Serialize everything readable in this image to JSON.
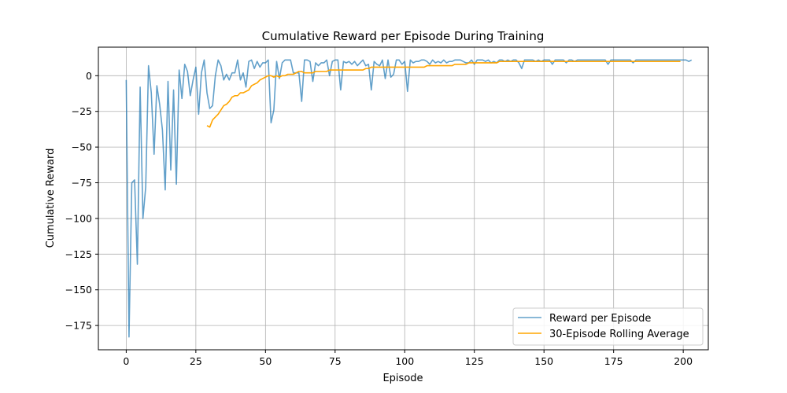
{
  "chart_data": {
    "type": "line",
    "title": "Cumulative Reward per Episode During Training",
    "xlabel": "Episode",
    "ylabel": "Cumulative Reward",
    "xlim": [
      -10,
      209
    ],
    "ylim": [
      -192,
      20
    ],
    "xticks": [
      0,
      25,
      50,
      75,
      100,
      125,
      150,
      175,
      200
    ],
    "yticks": [
      0,
      -25,
      -50,
      -75,
      -100,
      -125,
      -150,
      -175
    ],
    "grid": true,
    "legend_position": "lower-right",
    "series": [
      {
        "name": "Reward per Episode",
        "color": "#1f77b4",
        "opacity": 0.7,
        "x_start": 0,
        "values": [
          -3,
          -183,
          -75,
          -73,
          -132,
          -8,
          -100,
          -78,
          7,
          -12,
          -55,
          -7,
          -20,
          -38,
          -80,
          -4,
          -66,
          -10,
          -76,
          4,
          -16,
          8,
          3,
          -14,
          -3,
          6,
          -27,
          2,
          11,
          -12,
          -23,
          -21,
          0,
          11,
          7,
          -3,
          1,
          -3,
          2,
          2,
          11,
          -3,
          2,
          -8,
          10,
          11,
          5,
          10,
          6,
          9,
          9,
          11,
          -33,
          -24,
          10,
          -2,
          9,
          11,
          11,
          11,
          2,
          2,
          2,
          -18,
          11,
          11,
          10,
          -4,
          9,
          7,
          9,
          9,
          11,
          0,
          10,
          11,
          11,
          -10,
          10,
          9,
          10,
          8,
          10,
          7,
          9,
          11,
          7,
          8,
          -10,
          10,
          8,
          7,
          11,
          -2,
          11,
          -1,
          1,
          11,
          11,
          8,
          10,
          -11,
          11,
          9,
          10,
          10,
          11,
          11,
          10,
          8,
          11,
          9,
          10,
          9,
          11,
          9,
          10,
          10,
          11,
          11,
          11,
          10,
          9,
          9,
          11,
          8,
          11,
          11,
          11,
          10,
          11,
          9,
          10,
          9,
          11,
          11,
          10,
          11,
          10,
          11,
          11,
          9,
          5,
          11,
          11,
          11,
          11,
          10,
          11,
          10,
          11,
          11,
          11,
          8,
          11,
          11,
          11,
          11,
          9,
          11,
          11,
          10,
          11,
          11,
          11,
          11,
          11,
          11,
          11,
          11,
          11,
          11,
          11,
          8,
          11,
          11,
          11,
          11,
          11,
          11,
          11,
          11,
          9,
          11,
          11,
          11,
          11,
          11,
          11,
          11,
          11,
          11,
          11,
          11,
          11,
          11,
          11,
          11,
          11,
          11,
          11,
          11,
          10,
          11
        ]
      },
      {
        "name": "30-Episode Rolling Average",
        "color": "#ffa500",
        "opacity": 1,
        "x_start": 29,
        "values": [
          -35,
          -36,
          -31,
          -29,
          -27,
          -24,
          -21,
          -20,
          -18,
          -15,
          -14,
          -14,
          -12,
          -12,
          -11,
          -10,
          -7,
          -6,
          -5,
          -3,
          -2,
          -1,
          0,
          0,
          -1,
          0,
          -1,
          0,
          0,
          1,
          1,
          1,
          2,
          3,
          3,
          2,
          2,
          2,
          2,
          3,
          3,
          3,
          3,
          3,
          4,
          4,
          4,
          4,
          4,
          4,
          4,
          4,
          4,
          4,
          4,
          4,
          4,
          5,
          5,
          6,
          6,
          6,
          6,
          6,
          6,
          6,
          6,
          6,
          6,
          6,
          6,
          6,
          6,
          6,
          6,
          6,
          6,
          6,
          6,
          7,
          7,
          7,
          7,
          7,
          7,
          7,
          7,
          7,
          7,
          8,
          8,
          8,
          8,
          8,
          9,
          9,
          9,
          9,
          9,
          9,
          9,
          9,
          9,
          9,
          9,
          10,
          10,
          10,
          10,
          10,
          10,
          10,
          10,
          10,
          10,
          10,
          10,
          10,
          10,
          10,
          10,
          10,
          10,
          10,
          10,
          10,
          10,
          10,
          10,
          10,
          10,
          10,
          10,
          10,
          10,
          10,
          10,
          10,
          10,
          10,
          10,
          10,
          10,
          10,
          10,
          10,
          10,
          10,
          10,
          10,
          10,
          10,
          10,
          10,
          10,
          10,
          10,
          10,
          10,
          10,
          10,
          10,
          10,
          10,
          10,
          10,
          10,
          10,
          10,
          10,
          10
        ]
      }
    ]
  }
}
